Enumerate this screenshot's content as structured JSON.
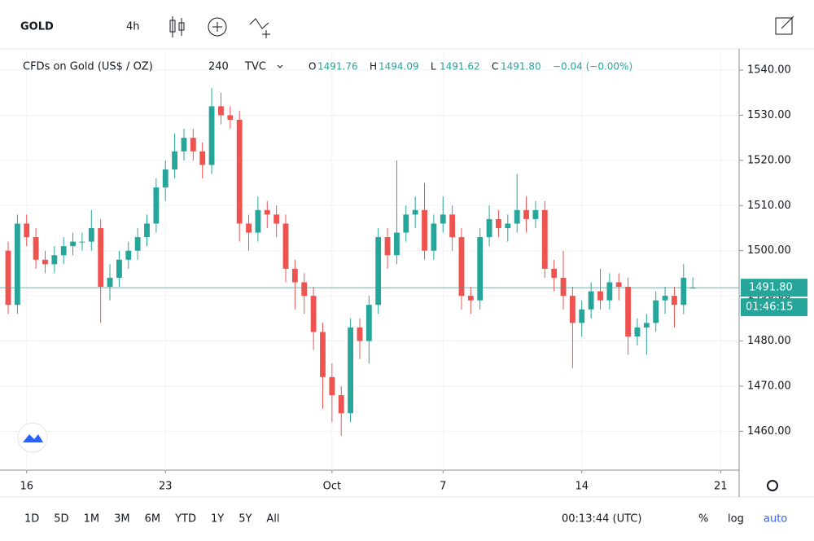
{
  "toolbar": {
    "symbol": "GOLD",
    "interval": "4h"
  },
  "legend": {
    "name": "CFDs on Gold (US$ / OZ)",
    "resolution": "240",
    "source": "TVC",
    "ohlc": [
      {
        "key": "O",
        "value": "1491.76"
      },
      {
        "key": "H",
        "value": "1494.09"
      },
      {
        "key": "L",
        "value": "1491.62"
      },
      {
        "key": "C",
        "value": "1491.80"
      }
    ],
    "change": "−0.04 (−0.00%)"
  },
  "price_label": "1491.80",
  "countdown": "01:46:15",
  "chart_data": {
    "type": "candlestick",
    "up_color": "#26a69a",
    "down_color": "#ef5350",
    "open": [
      1500,
      1488,
      1506,
      1503,
      1498,
      1497,
      1499,
      1501,
      1502,
      1502,
      1505,
      1492,
      1494,
      1498,
      1500,
      1503,
      1506,
      1514,
      1518,
      1522,
      1525,
      1522,
      1519,
      1532,
      1530,
      1529,
      1506,
      1504,
      1509,
      1508,
      1506,
      1496,
      1493,
      1490,
      1482,
      1472,
      1468,
      1464,
      1483,
      1480,
      1488,
      1503,
      1499,
      1504,
      1508,
      1509,
      1500,
      1506,
      1508,
      1503,
      1490,
      1489,
      1503,
      1507,
      1505,
      1506,
      1509,
      1507,
      1509,
      1496,
      1494,
      1490,
      1484,
      1487,
      1491,
      1489,
      1493,
      1492,
      1481,
      1483,
      1484,
      1489,
      1490,
      1488,
      1491.76
    ],
    "high": [
      1502,
      1508,
      1508,
      1505,
      1500,
      1501,
      1503,
      1504,
      1504,
      1509,
      1507,
      1497,
      1500,
      1502,
      1505,
      1508,
      1516,
      1520,
      1526,
      1527,
      1527,
      1524,
      1536,
      1535,
      1532,
      1531,
      1508,
      1512,
      1511,
      1510,
      1508,
      1498,
      1495,
      1492,
      1484,
      1475,
      1470,
      1485,
      1485,
      1490,
      1505,
      1505,
      1520,
      1510,
      1512,
      1515,
      1508,
      1512,
      1510,
      1505,
      1492,
      1505,
      1510,
      1509,
      1508,
      1517,
      1512,
      1511,
      1511,
      1498,
      1500,
      1492,
      1489,
      1493,
      1496,
      1495,
      1495,
      1494,
      1485,
      1486,
      1491,
      1492,
      1492,
      1497,
      1494.09
    ],
    "low": [
      1486,
      1486,
      1501,
      1496,
      1495,
      1495,
      1497,
      1499,
      1500,
      1500,
      1484,
      1489,
      1492,
      1496,
      1498,
      1501,
      1504,
      1511,
      1516,
      1520,
      1520,
      1516,
      1517,
      1528,
      1527,
      1502,
      1500,
      1502,
      1505,
      1503,
      1493,
      1487,
      1486,
      1478,
      1465,
      1462,
      1459,
      1462,
      1476,
      1475,
      1486,
      1496,
      1497,
      1502,
      1505,
      1498,
      1498,
      1504,
      1500,
      1487,
      1486,
      1487,
      1501,
      1503,
      1502,
      1504,
      1504,
      1505,
      1494,
      1491,
      1487,
      1474,
      1481,
      1485,
      1487,
      1487,
      1489,
      1477,
      1479,
      1477,
      1482,
      1486,
      1483,
      1486,
      1491.62
    ],
    "close": [
      1488,
      1506,
      1503,
      1498,
      1497,
      1499,
      1501,
      1502,
      1502,
      1505,
      1492,
      1494,
      1498,
      1500,
      1503,
      1506,
      1514,
      1518,
      1522,
      1525,
      1522,
      1519,
      1532,
      1530,
      1529,
      1506,
      1504,
      1509,
      1508,
      1506,
      1496,
      1493,
      1490,
      1482,
      1472,
      1468,
      1464,
      1483,
      1480,
      1488,
      1503,
      1499,
      1504,
      1508,
      1509,
      1500,
      1506,
      1508,
      1503,
      1490,
      1489,
      1503,
      1507,
      1505,
      1506,
      1509,
      1507,
      1509,
      1496,
      1494,
      1490,
      1484,
      1487,
      1491,
      1489,
      1493,
      1492,
      1481,
      1483,
      1484,
      1489,
      1490,
      1488,
      1494,
      1491.8
    ],
    "xlim": [
      0,
      79
    ],
    "xticks": [
      {
        "value": 2,
        "label": "16"
      },
      {
        "value": 17,
        "label": "23"
      },
      {
        "value": 35,
        "label": "Oct"
      },
      {
        "value": 47,
        "label": "7"
      },
      {
        "value": 62,
        "label": "14"
      },
      {
        "value": 77,
        "label": "21"
      }
    ],
    "ylim": [
      1451.4,
      1544.7
    ],
    "yticks": [
      {
        "value": 1460,
        "label": "1460.00"
      },
      {
        "value": 1470,
        "label": "1470.00"
      },
      {
        "value": 1480,
        "label": "1480.00"
      },
      {
        "value": 1490,
        "label": "1490.00"
      },
      {
        "value": 1500,
        "label": "1500.00"
      },
      {
        "value": 1510,
        "label": "1510.00"
      },
      {
        "value": 1520,
        "label": "1520.00"
      },
      {
        "value": 1530,
        "label": "1530.00"
      },
      {
        "value": 1540,
        "label": "1540.00"
      }
    ],
    "grid": true
  },
  "ranges": [
    "1D",
    "5D",
    "1M",
    "3M",
    "6M",
    "YTD",
    "1Y",
    "5Y",
    "All"
  ],
  "clock": "00:13:44 (UTC)",
  "scale_options": [
    "%",
    "log",
    "auto"
  ]
}
